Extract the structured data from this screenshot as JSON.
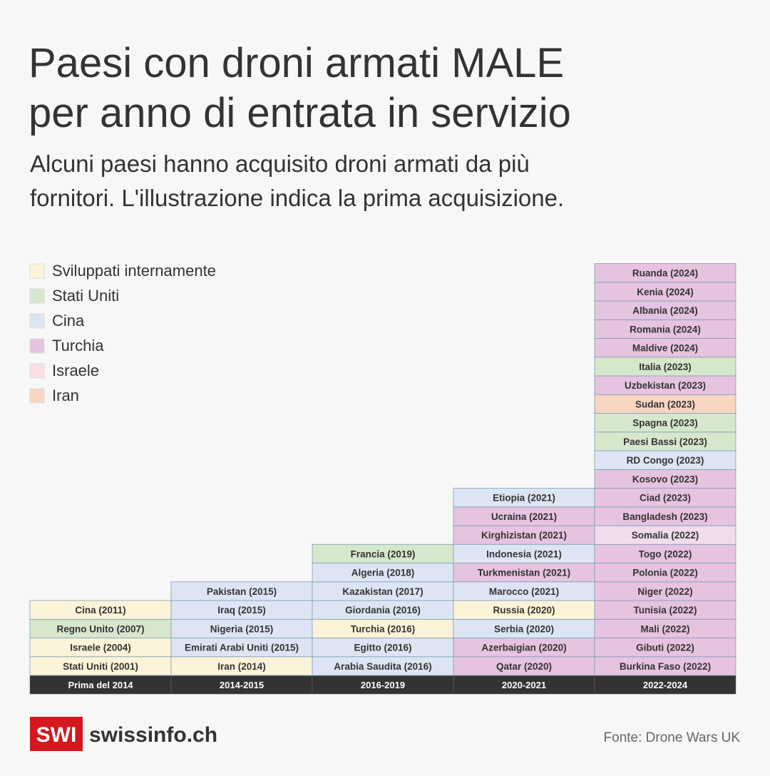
{
  "header": {
    "title_lines": [
      "Paesi con droni armati MALE",
      "per anno di entrata in servizio"
    ],
    "subtitle_lines": [
      "Alcuni paesi hanno acquisito droni armati da più",
      "fornitori. L'illustrazione indica la prima acquisizione."
    ]
  },
  "legend": [
    {
      "label": "Sviluppati internamente",
      "color": "#fdf3d8"
    },
    {
      "label": "Stati Uniti",
      "color": "#d5e8cc"
    },
    {
      "label": "Cina",
      "color": "#dde5f4"
    },
    {
      "label": "Turchia",
      "color": "#e6c3df"
    },
    {
      "label": "Israele",
      "color": "#f9dfe3"
    },
    {
      "label": "Iran",
      "color": "#f7d6c2"
    }
  ],
  "columns": [
    {
      "label": "Prima del 2014",
      "cells": [
        {
          "text": "Stati Uniti (2001)",
          "color": "#fdf3d8"
        },
        {
          "text": "Israele (2004)",
          "color": "#fdf3d8"
        },
        {
          "text": "Regno Unito (2007)",
          "color": "#d5e8cc"
        },
        {
          "text": "Cina (2011)",
          "color": "#fdf3d8"
        }
      ]
    },
    {
      "label": "2014-2015",
      "cells": [
        {
          "text": "Iran (2014)",
          "color": "#fdf3d8"
        },
        {
          "text": "Emirati Arabi Uniti (2015)",
          "color": "#dde5f4"
        },
        {
          "text": "Nigeria (2015)",
          "color": "#dde5f4"
        },
        {
          "text": "Iraq (2015)",
          "color": "#dde5f4"
        },
        {
          "text": "Pakistan (2015)",
          "color": "#dde5f4"
        }
      ]
    },
    {
      "label": "2016-2019",
      "cells": [
        {
          "text": "Arabia Saudita (2016)",
          "color": "#dde5f4"
        },
        {
          "text": "Egitto (2016)",
          "color": "#dde5f4"
        },
        {
          "text": "Turchia (2016)",
          "color": "#fdf3d8"
        },
        {
          "text": "Giordania (2016)",
          "color": "#dde5f4"
        },
        {
          "text": "Kazakistan (2017)",
          "color": "#dde5f4"
        },
        {
          "text": "Algeria (2018)",
          "color": "#dde5f4"
        },
        {
          "text": "Francia (2019)",
          "color": "#d5e8cc"
        }
      ]
    },
    {
      "label": "2020-2021",
      "cells": [
        {
          "text": "Qatar (2020)",
          "color": "#e6c3df"
        },
        {
          "text": "Azerbaigian (2020)",
          "color": "#e6c3df"
        },
        {
          "text": "Serbia (2020)",
          "color": "#dde5f4"
        },
        {
          "text": "Russia (2020)",
          "color": "#fdf3d8"
        },
        {
          "text": "Marocco (2021)",
          "color": "#dde5f4"
        },
        {
          "text": "Turkmenistan (2021)",
          "color": "#e6c3df"
        },
        {
          "text": "Indonesia (2021)",
          "color": "#dde5f4"
        },
        {
          "text": "Kirghizistan (2021)",
          "color": "#e6c3df"
        },
        {
          "text": "Ucraina (2021)",
          "color": "#e6c3df"
        },
        {
          "text": "Etiopia (2021)",
          "color": "#dde5f4"
        }
      ]
    },
    {
      "label": "2022-2024",
      "cells": [
        {
          "text": "Burkina Faso (2022)",
          "color": "#e6c3df"
        },
        {
          "text": "Gibuti (2022)",
          "color": "#e6c3df"
        },
        {
          "text": "Mali (2022)",
          "color": "#e6c3df"
        },
        {
          "text": "Tunisia (2022)",
          "color": "#e6c3df"
        },
        {
          "text": "Niger (2022)",
          "color": "#e6c3df"
        },
        {
          "text": "Polonia (2022)",
          "color": "#e6c3df"
        },
        {
          "text": "Togo (2022)",
          "color": "#e6c3df"
        },
        {
          "text": "Somalia (2022)",
          "color": "#f0dcec"
        },
        {
          "text": "Bangladesh (2023)",
          "color": "#e6c3df"
        },
        {
          "text": "Ciad (2023)",
          "color": "#e6c3df"
        },
        {
          "text": "Kosovo (2023)",
          "color": "#e6c3df"
        },
        {
          "text": "RD Congo (2023)",
          "color": "#dde5f4"
        },
        {
          "text": "Paesi Bassi (2023)",
          "color": "#d5e8cc"
        },
        {
          "text": "Spagna (2023)",
          "color": "#d5e8cc"
        },
        {
          "text": "Sudan (2023)",
          "color": "#f7d6c2"
        },
        {
          "text": "Uzbekistan (2023)",
          "color": "#e6c3df"
        },
        {
          "text": "Italia (2023)",
          "color": "#d5e8cc"
        },
        {
          "text": "Maldive (2024)",
          "color": "#e6c3df"
        },
        {
          "text": "Romania (2024)",
          "color": "#e6c3df"
        },
        {
          "text": "Albania (2024)",
          "color": "#e6c3df"
        },
        {
          "text": "Kenia (2024)",
          "color": "#e6c3df"
        },
        {
          "text": "Ruanda (2024)",
          "color": "#e6c3df"
        }
      ]
    }
  ],
  "footer": {
    "logo_mark": "SWI",
    "logo_text": "swissinfo.ch",
    "source": "Fonte: Drone Wars UK"
  }
}
